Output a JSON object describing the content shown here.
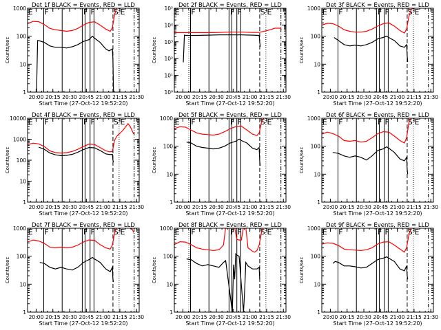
{
  "figure": {
    "xlabel": "Start Time (27-Oct-12 19:52:20)",
    "ylabel": "Counts/sec",
    "colors": {
      "events": "#000000",
      "lld": "#ff0000",
      "axes": "#000000"
    },
    "time_range_min": [
      0,
      100
    ],
    "xtick_minutes": [
      7.67,
      22.67,
      37.67,
      52.67,
      67.67,
      82.67,
      97.67
    ],
    "xtick_labels": [
      "20:00",
      "20:15",
      "20:30",
      "20:45",
      "21:00",
      "21:15",
      "21:30"
    ],
    "markers": {
      "solid_lines_min": [
        14.5,
        31,
        49,
        51.5,
        56,
        59.5
      ],
      "dashed_line_min": 76.5,
      "dotted_line_min": 82,
      "dashdot_line_min": 95.5,
      "left_dotted_line_min": 13
    },
    "marker_labels": [
      {
        "text": "E",
        "min": 0.5
      },
      {
        "text": "F",
        "min": 15
      },
      {
        "text": "F",
        "min": 50
      },
      {
        "text": "F",
        "min": 56.5
      },
      {
        "text": "S",
        "min": 77
      },
      {
        "text": "E",
        "min": 83
      }
    ]
  },
  "chart_data": [
    {
      "type": "line",
      "title": "Det 1f BLACK = Events, RED = LLD",
      "xlabel": "Start Time (27-Oct-12 19:52:20)",
      "ylabel": "Counts/sec",
      "yscale": "log",
      "ylim": [
        1,
        1000
      ],
      "yticks": [
        1,
        10,
        100,
        1000
      ],
      "ytick_labels": [
        "1",
        "10",
        "100",
        "1000"
      ],
      "show_left_dotted": false,
      "series": [
        {
          "name": "LLD",
          "color": "#ff0000",
          "x": [
            0,
            5,
            10,
            15,
            20,
            25,
            30,
            35,
            40,
            45,
            50,
            55,
            60,
            65,
            70,
            74,
            76,
            78,
            80,
            100
          ],
          "y": [
            280,
            340,
            330,
            260,
            190,
            170,
            160,
            150,
            160,
            190,
            250,
            310,
            330,
            250,
            180,
            150,
            200,
            600,
            1100,
            1100
          ]
        },
        {
          "name": "Events",
          "color": "#000000",
          "x": [
            8,
            8.5,
            9,
            10,
            15,
            20,
            25,
            30,
            35,
            40,
            45,
            50,
            55,
            58,
            60,
            65,
            70,
            73,
            76,
            76.5,
            77
          ],
          "y": [
            1,
            8,
            70,
            70,
            60,
            45,
            40,
            40,
            38,
            42,
            50,
            65,
            75,
            100,
            85,
            60,
            35,
            30,
            35,
            15,
            1
          ]
        }
      ]
    },
    {
      "type": "line",
      "title": "Det 2f BLACK = Events, RED = LLD",
      "xlabel": "Start Time (27-Oct-12 19:52:20)",
      "ylabel": "Counts/sec",
      "yscale": "log",
      "ylim": [
        1,
        100000
      ],
      "yticks": [
        1,
        10,
        100,
        1000,
        10000,
        100000
      ],
      "ytick_labels": [
        "10⁰",
        "10¹",
        "10²",
        "10³",
        "10⁴",
        "10⁵"
      ],
      "show_left_dotted": true,
      "series": [
        {
          "name": "LLD",
          "color": "#ff0000",
          "x": [
            0,
            10,
            20,
            30,
            40,
            50,
            60,
            70,
            76,
            80,
            85,
            90,
            95,
            96
          ],
          "y": [
            3500,
            3500,
            3500,
            3500,
            3600,
            3800,
            3800,
            3600,
            3600,
            4200,
            5000,
            6500,
            6500,
            5500
          ]
        },
        {
          "name": "Events",
          "color": "#000000",
          "x": [
            8,
            8.5,
            9,
            10,
            20,
            30,
            40,
            50,
            60,
            70,
            76,
            76.5,
            77
          ],
          "y": [
            60,
            350,
            2500,
            2400,
            2400,
            2500,
            2600,
            2600,
            2600,
            2500,
            2400,
            1000,
            500
          ]
        }
      ]
    },
    {
      "type": "line",
      "title": "Det 3f BLACK = Events, RED = LLD",
      "xlabel": "Start Time (27-Oct-12 19:52:20)",
      "ylabel": "Counts/sec",
      "yscale": "log",
      "ylim": [
        1,
        1000
      ],
      "yticks": [
        1,
        10,
        100,
        1000
      ],
      "ytick_labels": [
        "1",
        "10",
        "100",
        "1000"
      ],
      "show_left_dotted": false,
      "series": [
        {
          "name": "LLD",
          "color": "#ff0000",
          "x": [
            0,
            5,
            10,
            15,
            20,
            25,
            30,
            35,
            40,
            45,
            50,
            55,
            60,
            65,
            70,
            74,
            76,
            78,
            80,
            82
          ],
          "y": [
            250,
            290,
            280,
            230,
            170,
            150,
            140,
            140,
            150,
            180,
            230,
            280,
            300,
            230,
            160,
            130,
            180,
            500,
            900,
            1000
          ]
        },
        {
          "name": "Events",
          "color": "#000000",
          "x": [
            11,
            15,
            20,
            25,
            30,
            35,
            40,
            45,
            50,
            55,
            58,
            60,
            65,
            70,
            74,
            76,
            76.5,
            77
          ],
          "y": [
            90,
            70,
            50,
            45,
            48,
            45,
            50,
            60,
            80,
            90,
            100,
            90,
            70,
            45,
            40,
            50,
            20,
            12
          ]
        }
      ]
    },
    {
      "type": "line",
      "title": "Det 4f BLACK = Events, RED = LLD",
      "xlabel": "Start Time (27-Oct-12 19:52:20)",
      "ylabel": "Counts/sec",
      "yscale": "log",
      "ylim": [
        1,
        10000
      ],
      "yticks": [
        1,
        10,
        100,
        1000,
        10000
      ],
      "ytick_labels": [
        "1",
        "10",
        "100",
        "1000",
        "10000"
      ],
      "show_left_dotted": false,
      "series": [
        {
          "name": "LLD",
          "color": "#ff0000",
          "x": [
            0,
            5,
            10,
            15,
            20,
            25,
            30,
            35,
            40,
            45,
            50,
            55,
            60,
            65,
            70,
            74,
            76,
            78,
            80,
            85,
            88,
            90,
            92,
            95
          ],
          "y": [
            550,
            650,
            600,
            450,
            280,
            230,
            220,
            230,
            260,
            330,
            450,
            580,
            560,
            400,
            280,
            250,
            260,
            900,
            1400,
            2500,
            4000,
            5500,
            4000,
            1800
          ]
        },
        {
          "name": "Events",
          "color": "#000000",
          "x": [
            10,
            15,
            20,
            25,
            30,
            35,
            40,
            45,
            50,
            55,
            60,
            65,
            70,
            74,
            76,
            76.5,
            77
          ],
          "y": [
            420,
            330,
            220,
            180,
            165,
            170,
            190,
            240,
            320,
            400,
            390,
            290,
            200,
            185,
            190,
            100,
            80
          ]
        }
      ]
    },
    {
      "type": "line",
      "title": "Det 5f BLACK = Events, RED = LLD",
      "xlabel": "Start Time (27-Oct-12 19:52:20)",
      "ylabel": "Counts/sec",
      "yscale": "log",
      "ylim": [
        1,
        1000
      ],
      "yticks": [
        1,
        10,
        100,
        1000
      ],
      "ytick_labels": [
        "1",
        "10",
        "100",
        "1000"
      ],
      "show_left_dotted": true,
      "series": [
        {
          "name": "LLD",
          "color": "#ff0000",
          "x": [
            0,
            5,
            10,
            15,
            20,
            25,
            30,
            35,
            40,
            45,
            50,
            55,
            60,
            65,
            70,
            74,
            76,
            78,
            80,
            82
          ],
          "y": [
            420,
            500,
            480,
            380,
            300,
            270,
            260,
            250,
            270,
            330,
            420,
            500,
            520,
            380,
            270,
            240,
            300,
            700,
            1000,
            1100
          ]
        },
        {
          "name": "Events",
          "color": "#000000",
          "x": [
            11,
            15,
            20,
            25,
            30,
            35,
            40,
            45,
            50,
            55,
            58,
            60,
            65,
            70,
            74,
            76,
            76.5,
            77
          ],
          "y": [
            140,
            130,
            100,
            90,
            85,
            80,
            85,
            100,
            130,
            150,
            180,
            160,
            130,
            85,
            75,
            90,
            30,
            20
          ]
        }
      ]
    },
    {
      "type": "line",
      "title": "Det 6f BLACK = Events, RED = LLD",
      "xlabel": "Start Time (27-Oct-12 19:52:20)",
      "ylabel": "Counts/sec",
      "yscale": "log",
      "ylim": [
        1,
        1000
      ],
      "yticks": [
        1,
        10,
        100,
        1000
      ],
      "ytick_labels": [
        "1",
        "10",
        "100",
        "1000"
      ],
      "show_left_dotted": false,
      "series": [
        {
          "name": "LLD",
          "color": "#ff0000",
          "x": [
            0,
            5,
            10,
            15,
            20,
            25,
            30,
            35,
            40,
            45,
            50,
            55,
            60,
            65,
            70,
            74,
            76,
            78,
            80,
            82
          ],
          "y": [
            270,
            320,
            280,
            230,
            160,
            150,
            160,
            140,
            150,
            200,
            280,
            330,
            320,
            230,
            160,
            130,
            200,
            700,
            1000,
            1100
          ]
        },
        {
          "name": "Events",
          "color": "#000000",
          "x": [
            10,
            15,
            20,
            25,
            30,
            35,
            40,
            45,
            50,
            55,
            58,
            60,
            65,
            70,
            74,
            76,
            76.5,
            77
          ],
          "y": [
            60,
            55,
            45,
            40,
            45,
            40,
            32,
            45,
            70,
            80,
            95,
            85,
            60,
            35,
            30,
            40,
            15,
            10
          ]
        }
      ]
    },
    {
      "type": "line",
      "title": "Det 7f BLACK = Events, RED = LLD",
      "xlabel": "Start Time (27-Oct-12 19:52:20)",
      "ylabel": "Counts/sec",
      "yscale": "log",
      "ylim": [
        1,
        1000
      ],
      "yticks": [
        1,
        10,
        100,
        1000
      ],
      "ytick_labels": [
        "1",
        "10",
        "100",
        "1000"
      ],
      "show_left_dotted": false,
      "series": [
        {
          "name": "LLD",
          "color": "#ff0000",
          "x": [
            0,
            5,
            10,
            15,
            20,
            25,
            30,
            35,
            40,
            45,
            50,
            55,
            60,
            65,
            70,
            74,
            76,
            78,
            80,
            90,
            94,
            95
          ],
          "y": [
            320,
            380,
            350,
            290,
            210,
            200,
            210,
            200,
            210,
            250,
            320,
            380,
            370,
            260,
            200,
            180,
            250,
            700,
            1100,
            1100,
            900,
            700
          ]
        },
        {
          "name": "Events",
          "color": "#000000",
          "x": [
            11,
            15,
            20,
            25,
            30,
            35,
            40,
            45,
            50,
            55,
            58,
            60,
            65,
            70,
            74,
            76,
            76.5,
            77
          ],
          "y": [
            60,
            55,
            40,
            35,
            40,
            35,
            32,
            40,
            60,
            75,
            90,
            80,
            60,
            35,
            28,
            40,
            15,
            12
          ]
        }
      ]
    },
    {
      "type": "line",
      "title": "Det 8f BLACK = Events, RED = LLD",
      "xlabel": "Start Time (27-Oct-12 19:52:20)",
      "ylabel": "Counts/sec",
      "yscale": "log",
      "ylim": [
        1,
        1000
      ],
      "yticks": [
        1,
        10,
        100,
        1000
      ],
      "ytick_labels": [
        "1",
        "10",
        "100",
        "1000"
      ],
      "show_left_dotted": true,
      "series": [
        {
          "name": "LLD",
          "color": "#ff0000",
          "x": [
            0,
            5,
            10,
            15,
            20,
            25,
            30,
            35,
            40,
            44,
            46,
            48,
            54,
            56,
            58,
            60,
            62,
            64,
            66,
            70,
            72,
            74,
            76,
            78,
            80
          ],
          "y": [
            260,
            330,
            320,
            260,
            200,
            180,
            170,
            160,
            170,
            250,
            1100,
            1100,
            1100,
            400,
            380,
            380,
            1100,
            1100,
            200,
            150,
            140,
            160,
            250,
            700,
            1100
          ]
        },
        {
          "name": "Events",
          "color": "#000000",
          "x": [
            11,
            15,
            20,
            25,
            30,
            35,
            40,
            44,
            46,
            52,
            53,
            54,
            55,
            56,
            58,
            62,
            63,
            64,
            66,
            70,
            74,
            76,
            76.5
          ],
          "y": [
            80,
            75,
            55,
            45,
            50,
            45,
            40,
            60,
            70,
            1,
            50,
            15,
            120,
            110,
            100,
            1,
            6,
            60,
            45,
            35,
            35,
            40,
            15
          ]
        }
      ]
    },
    {
      "type": "line",
      "title": "Det 9f BLACK = Events, RED = LLD",
      "xlabel": "Start Time (27-Oct-12 19:52:20)",
      "ylabel": "Counts/sec",
      "yscale": "log",
      "ylim": [
        1,
        1000
      ],
      "yticks": [
        1,
        10,
        100,
        1000
      ],
      "ytick_labels": [
        "1",
        "10",
        "100",
        "1000"
      ],
      "show_left_dotted": false,
      "series": [
        {
          "name": "LLD",
          "color": "#ff0000",
          "x": [
            0,
            5,
            10,
            15,
            20,
            25,
            30,
            35,
            40,
            45,
            50,
            55,
            60,
            65,
            70,
            74,
            76,
            78,
            80,
            82
          ],
          "y": [
            270,
            300,
            290,
            240,
            180,
            170,
            165,
            160,
            170,
            200,
            270,
            320,
            330,
            250,
            180,
            140,
            200,
            600,
            1000,
            1100
          ]
        },
        {
          "name": "Events",
          "color": "#000000",
          "x": [
            10,
            12,
            15,
            20,
            25,
            30,
            35,
            40,
            45,
            50,
            55,
            58,
            60,
            65,
            70,
            74,
            76,
            76.5,
            77
          ],
          "y": [
            55,
            65,
            60,
            45,
            45,
            42,
            38,
            40,
            55,
            75,
            85,
            95,
            85,
            65,
            35,
            30,
            45,
            20,
            15
          ]
        }
      ]
    }
  ]
}
